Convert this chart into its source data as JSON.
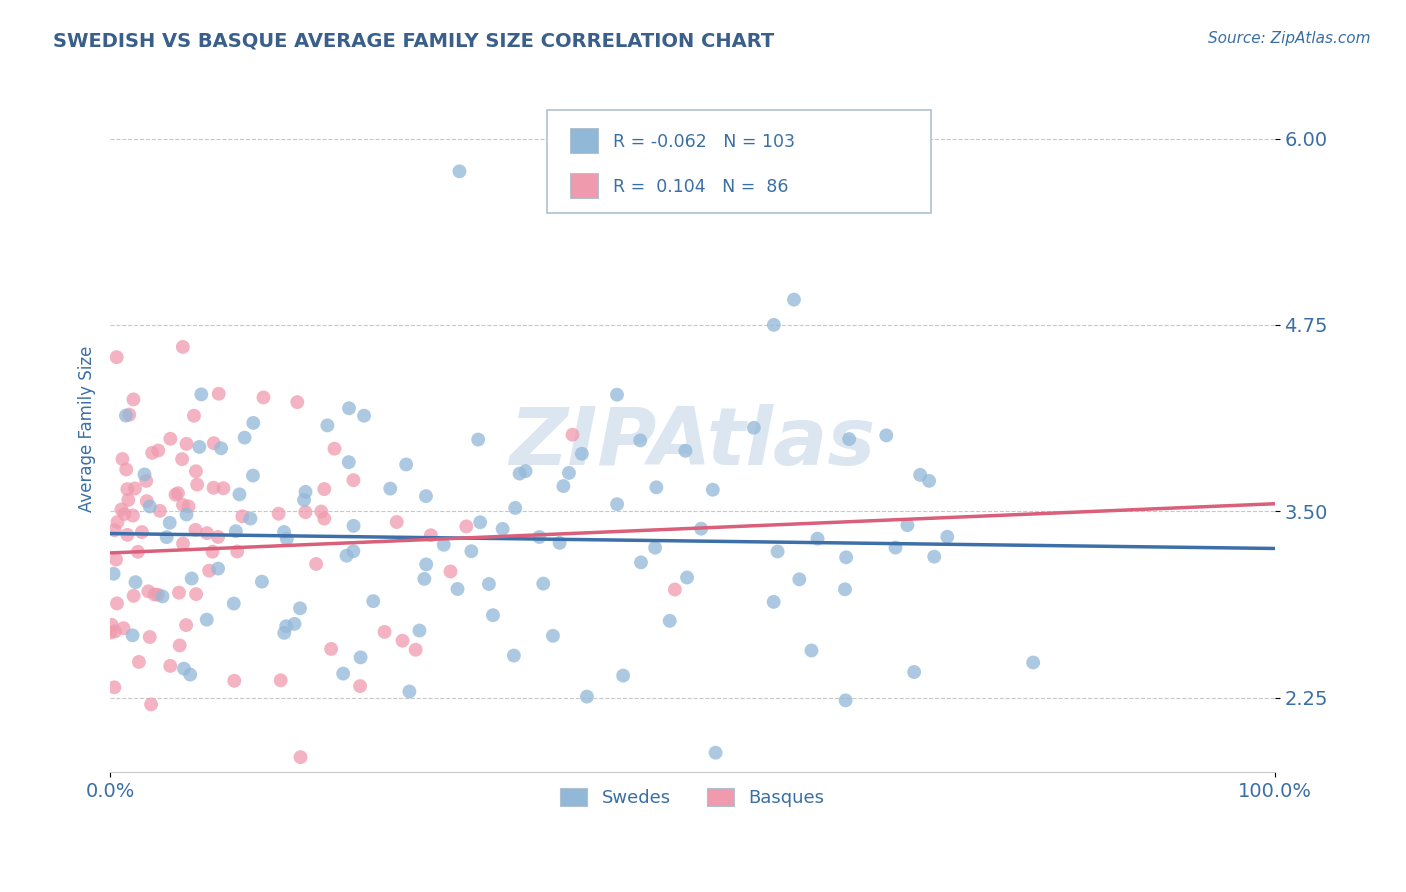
{
  "title": "SWEDISH VS BASQUE AVERAGE FAMILY SIZE CORRELATION CHART",
  "source_text": "Source: ZipAtlas.com",
  "ylabel": "Average Family Size",
  "xlim": [
    0.0,
    1.0
  ],
  "ylim": [
    1.75,
    6.35
  ],
  "yticks": [
    2.25,
    3.5,
    4.75,
    6.0
  ],
  "xticks": [
    0.0,
    1.0
  ],
  "xticklabels": [
    "0.0%",
    "100.0%"
  ],
  "swede_color": "#92b8d8",
  "basque_color": "#f09aae",
  "trend_swede_color": "#3d6fa8",
  "trend_basque_color": "#d95f7a",
  "title_color": "#3a5f8a",
  "axis_color": "#3a6fa5",
  "tick_color": "#3a6fa5",
  "watermark": "ZIPAtlas",
  "watermark_color": "#dce6f0",
  "grid_color": "#c8c8c8",
  "background_color": "#ffffff",
  "swede_R": -0.062,
  "basque_R": 0.104,
  "swede_N": 103,
  "basque_N": 86,
  "legend_box_color": "#e8eef5",
  "legend_border_color": "#b0c0d0"
}
